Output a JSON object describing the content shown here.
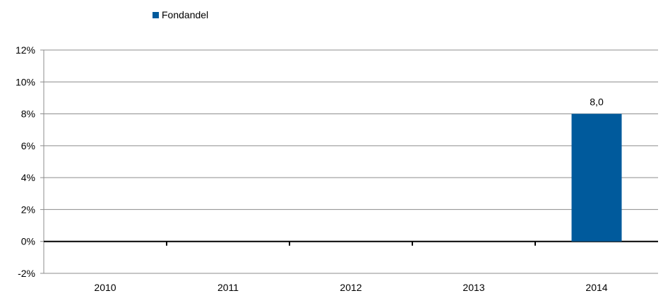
{
  "chart_data": {
    "type": "bar",
    "categories": [
      "2010",
      "2011",
      "2012",
      "2013",
      "2014"
    ],
    "series": [
      {
        "name": "Fondandel",
        "values": [
          null,
          null,
          null,
          null,
          8.0
        ],
        "data_labels": [
          "",
          "",
          "",
          "",
          "8,0"
        ],
        "color": "#005a9c"
      }
    ],
    "yticks": [
      -2,
      0,
      2,
      4,
      6,
      8,
      10,
      12
    ],
    "ytick_labels": [
      "-2%",
      "0%",
      "2%",
      "4%",
      "6%",
      "8%",
      "10%",
      "12%"
    ],
    "ylim": [
      -2,
      12
    ],
    "grid": true,
    "legend_position": "top-left",
    "title": "",
    "xlabel": "",
    "ylabel": ""
  }
}
